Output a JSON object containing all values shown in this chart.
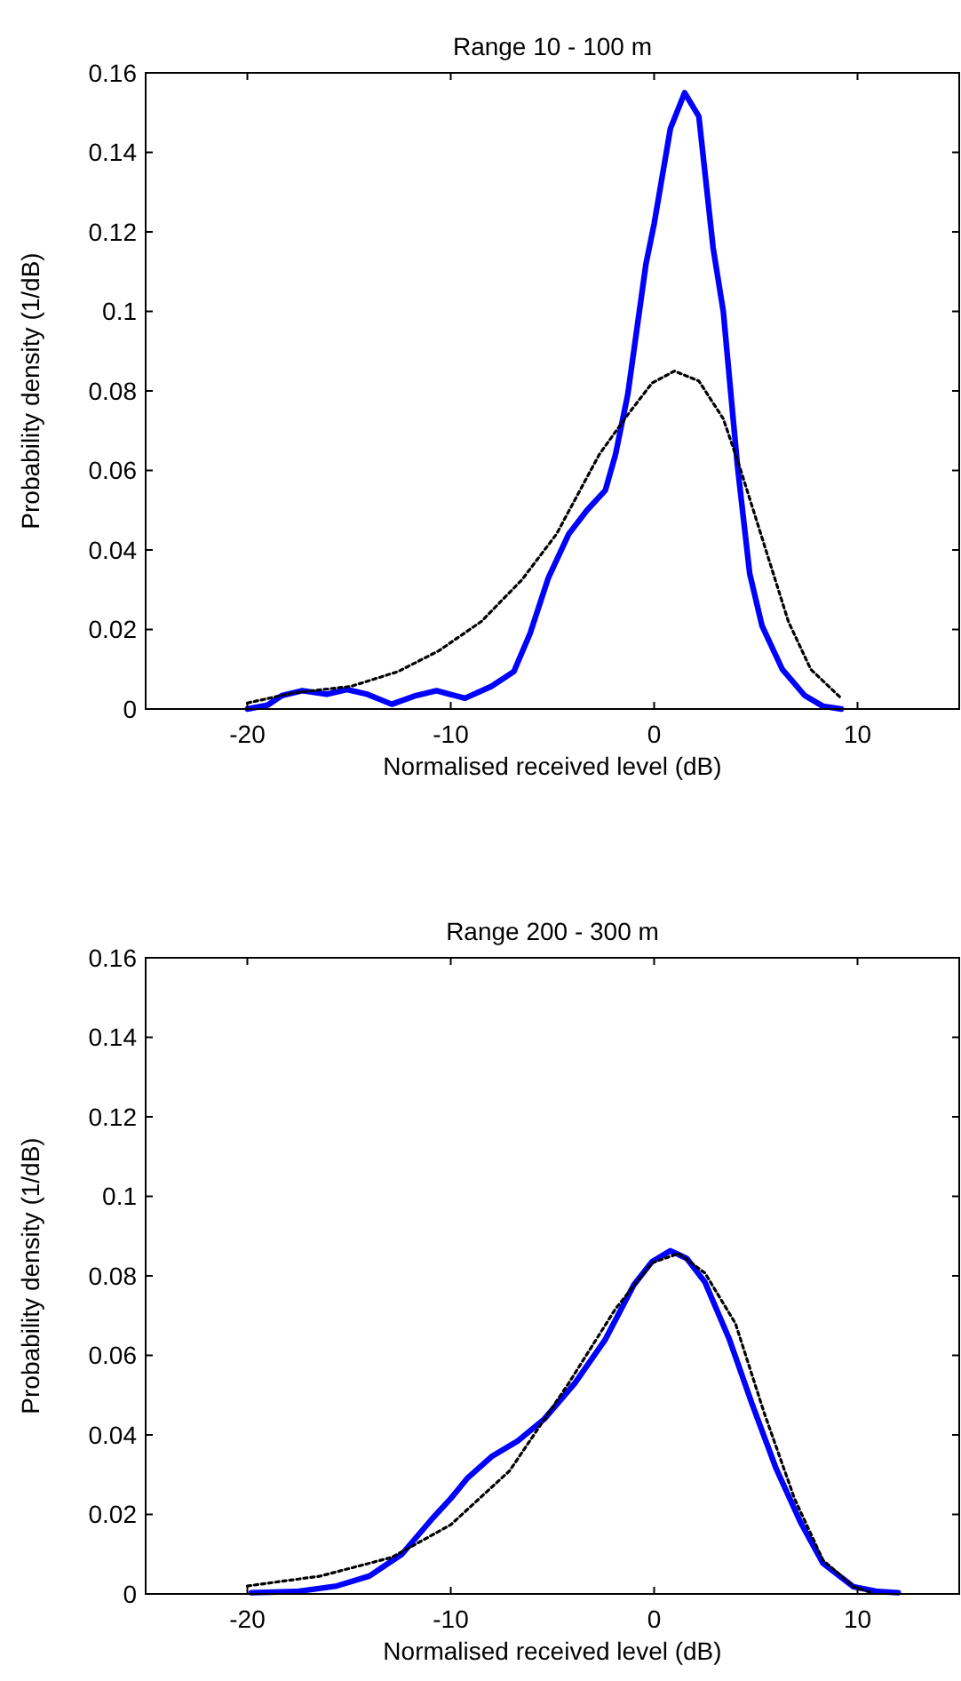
{
  "chart_data": [
    {
      "type": "line",
      "title": "Range 10 - 100 m",
      "xlabel": "Normalised received level (dB)",
      "ylabel": "Probability density (1/dB)",
      "xlim": [
        -25,
        15
      ],
      "xticks": [
        -20,
        -10,
        0,
        10
      ],
      "ylim": [
        0,
        0.16
      ],
      "yticks": [
        0,
        0.02,
        0.04,
        0.06,
        0.08,
        0.1,
        0.12,
        0.14,
        0.16
      ],
      "series": [
        {
          "color": "#0000ff",
          "line_style": "solid",
          "x": [
            -20,
            -19,
            -18.3,
            -17.3,
            -16.1,
            -15.1,
            -14.1,
            -12.9,
            -11.7,
            -10.7,
            -9.3,
            -8,
            -6.9,
            -6.1,
            -5.2,
            -4.2,
            -3.3,
            -2.4,
            -1.9,
            -1.3,
            -0.4,
            0,
            0.8,
            1.5,
            2.2,
            2.9,
            3.4,
            4.1,
            4.7,
            5.3,
            6.3,
            7.4,
            8.3,
            9.2
          ],
          "values": [
            0,
            0.001,
            0.0034,
            0.0046,
            0.0037,
            0.0049,
            0.0037,
            0.0012,
            0.0034,
            0.0046,
            0.0027,
            0.0057,
            0.0094,
            0.019,
            0.033,
            0.044,
            0.05,
            0.055,
            0.064,
            0.079,
            0.112,
            0.122,
            0.146,
            0.155,
            0.149,
            0.116,
            0.1,
            0.061,
            0.034,
            0.021,
            0.01,
            0.0034,
            0.0007,
            0
          ]
        },
        {
          "color": "#000000",
          "line_style": "dotted",
          "x": [
            -20,
            -17.8,
            -14.9,
            -12.6,
            -10.6,
            -8.5,
            -6.5,
            -4.8,
            -2.7,
            -1.3,
            -0.1,
            1,
            2.2,
            3.4,
            4.2,
            5.4,
            6.6,
            7.7,
            9.2
          ],
          "values": [
            0.0015,
            0.004,
            0.0057,
            0.0094,
            0.0146,
            0.022,
            0.0325,
            0.044,
            0.064,
            0.074,
            0.082,
            0.085,
            0.0825,
            0.073,
            0.061,
            0.0415,
            0.022,
            0.01,
            0.0027
          ]
        }
      ]
    },
    {
      "type": "line",
      "title": "Range 200 - 300 m",
      "xlabel": "Normalised received level (dB)",
      "ylabel": "Probability density (1/dB)",
      "xlim": [
        -25,
        15
      ],
      "xticks": [
        -20,
        -10,
        0,
        10
      ],
      "ylim": [
        0,
        0.16
      ],
      "yticks": [
        0,
        0.02,
        0.04,
        0.06,
        0.08,
        0.1,
        0.12,
        0.14,
        0.16
      ],
      "series": [
        {
          "color": "#0000ff",
          "line_style": "solid",
          "x": [
            -19.8,
            -17.6,
            -15.6,
            -14,
            -12.4,
            -10.9,
            -10,
            -9.2,
            -8,
            -6.7,
            -5.4,
            -3.9,
            -2.4,
            -1,
            -0.1,
            0.8,
            1.6,
            2.5,
            3.7,
            4.8,
            6,
            7.2,
            8.3,
            9.8,
            11,
            12
          ],
          "values": [
            0.0003,
            0.0006,
            0.002,
            0.0045,
            0.01,
            0.019,
            0.024,
            0.029,
            0.0345,
            0.0385,
            0.044,
            0.053,
            0.064,
            0.0777,
            0.0836,
            0.0863,
            0.0844,
            0.0784,
            0.064,
            0.048,
            0.0315,
            0.018,
            0.0077,
            0.0018,
            0.0006,
            0.0003
          ]
        },
        {
          "color": "#000000",
          "line_style": "dotted",
          "x": [
            -20,
            -16.4,
            -12.9,
            -10,
            -7.1,
            -4.2,
            -1.9,
            -0.1,
            1.2,
            2.5,
            4,
            5.4,
            6.9,
            8.3,
            9.8,
            10.7
          ],
          "values": [
            0.002,
            0.0045,
            0.0092,
            0.0174,
            0.031,
            0.053,
            0.0717,
            0.0833,
            0.0856,
            0.0807,
            0.068,
            0.0457,
            0.024,
            0.0085,
            0.0018,
            0.0003
          ]
        }
      ]
    }
  ]
}
